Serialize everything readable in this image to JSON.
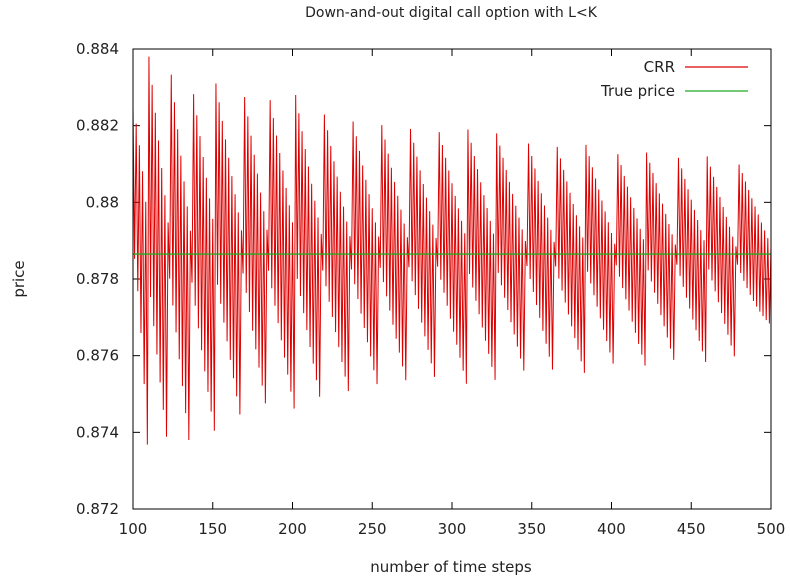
{
  "chart_data": {
    "type": "line",
    "title": "Down-and-out digital call option with L<K",
    "xlabel": "number of time steps",
    "ylabel": "price",
    "xlim": [
      100,
      500
    ],
    "ylim": [
      0.872,
      0.884
    ],
    "x_ticks": [
      100,
      150,
      200,
      250,
      300,
      350,
      400,
      450,
      500
    ],
    "x_tick_labels": [
      "100",
      "150",
      "200",
      "250",
      "300",
      "350",
      "400",
      "450",
      "500"
    ],
    "y_ticks": [
      0.872,
      0.874,
      0.876,
      0.878,
      0.88,
      0.882,
      0.884
    ],
    "y_tick_labels": [
      "0.872",
      "0.874",
      "0.876",
      "0.878",
      "0.88",
      "0.882",
      "0.884"
    ],
    "grid": false,
    "legend_position": "top-right",
    "series": [
      {
        "name": "CRR",
        "color": "#dd0000",
        "style": "oscillating sawtooth sampled at every time step",
        "envelope": [
          {
            "x": 100,
            "max": 0.8823,
            "min": 0.877
          },
          {
            "x": 110,
            "max": 0.8836,
            "min": 0.873
          },
          {
            "x": 123,
            "max": 0.8835,
            "min": 0.8734
          },
          {
            "x": 137,
            "max": 0.8829,
            "min": 0.8733
          },
          {
            "x": 152,
            "max": 0.8829,
            "min": 0.874
          },
          {
            "x": 169,
            "max": 0.8828,
            "min": 0.8742
          },
          {
            "x": 185,
            "max": 0.8827,
            "min": 0.8745
          },
          {
            "x": 202,
            "max": 0.8826,
            "min": 0.8746
          },
          {
            "x": 219,
            "max": 0.8823,
            "min": 0.8747
          },
          {
            "x": 237,
            "max": 0.8821,
            "min": 0.8749
          },
          {
            "x": 255,
            "max": 0.882,
            "min": 0.8751
          },
          {
            "x": 273,
            "max": 0.8819,
            "min": 0.8752
          },
          {
            "x": 291,
            "max": 0.8818,
            "min": 0.8753
          },
          {
            "x": 310,
            "max": 0.8817,
            "min": 0.8753
          },
          {
            "x": 328,
            "max": 0.8816,
            "min": 0.8754
          },
          {
            "x": 347,
            "max": 0.8815,
            "min": 0.8755
          },
          {
            "x": 365,
            "max": 0.8814,
            "min": 0.8755
          },
          {
            "x": 384,
            "max": 0.8813,
            "min": 0.8756
          },
          {
            "x": 403,
            "max": 0.8812,
            "min": 0.8757
          },
          {
            "x": 422,
            "max": 0.8811,
            "min": 0.8758
          },
          {
            "x": 441,
            "max": 0.8811,
            "min": 0.8758
          },
          {
            "x": 460,
            "max": 0.881,
            "min": 0.8759
          },
          {
            "x": 479,
            "max": 0.8809,
            "min": 0.8759
          },
          {
            "x": 500,
            "max": 0.8809,
            "min": 0.877
          }
        ],
        "troughs": [
          {
            "x": 110,
            "value": 0.873
          },
          {
            "x": 123,
            "value": 0.8734
          },
          {
            "x": 137,
            "value": 0.8733
          },
          {
            "x": 152,
            "value": 0.874
          },
          {
            "x": 169,
            "value": 0.8742
          },
          {
            "x": 185,
            "value": 0.8745
          },
          {
            "x": 202,
            "value": 0.8746
          },
          {
            "x": 219,
            "value": 0.8747
          },
          {
            "x": 237,
            "value": 0.8749
          },
          {
            "x": 255,
            "value": 0.8751
          },
          {
            "x": 273,
            "value": 0.8752
          },
          {
            "x": 291,
            "value": 0.8753
          },
          {
            "x": 310,
            "value": 0.8753
          },
          {
            "x": 328,
            "value": 0.8754
          },
          {
            "x": 347,
            "value": 0.8755
          },
          {
            "x": 365,
            "value": 0.8755
          },
          {
            "x": 384,
            "value": 0.8756
          },
          {
            "x": 403,
            "value": 0.8757
          },
          {
            "x": 422,
            "value": 0.8758
          },
          {
            "x": 441,
            "value": 0.8758
          },
          {
            "x": 460,
            "value": 0.8759
          },
          {
            "x": 479,
            "value": 0.8759
          }
        ]
      },
      {
        "name": "True price",
        "color": "#22aa22",
        "value": 0.87865
      }
    ]
  }
}
